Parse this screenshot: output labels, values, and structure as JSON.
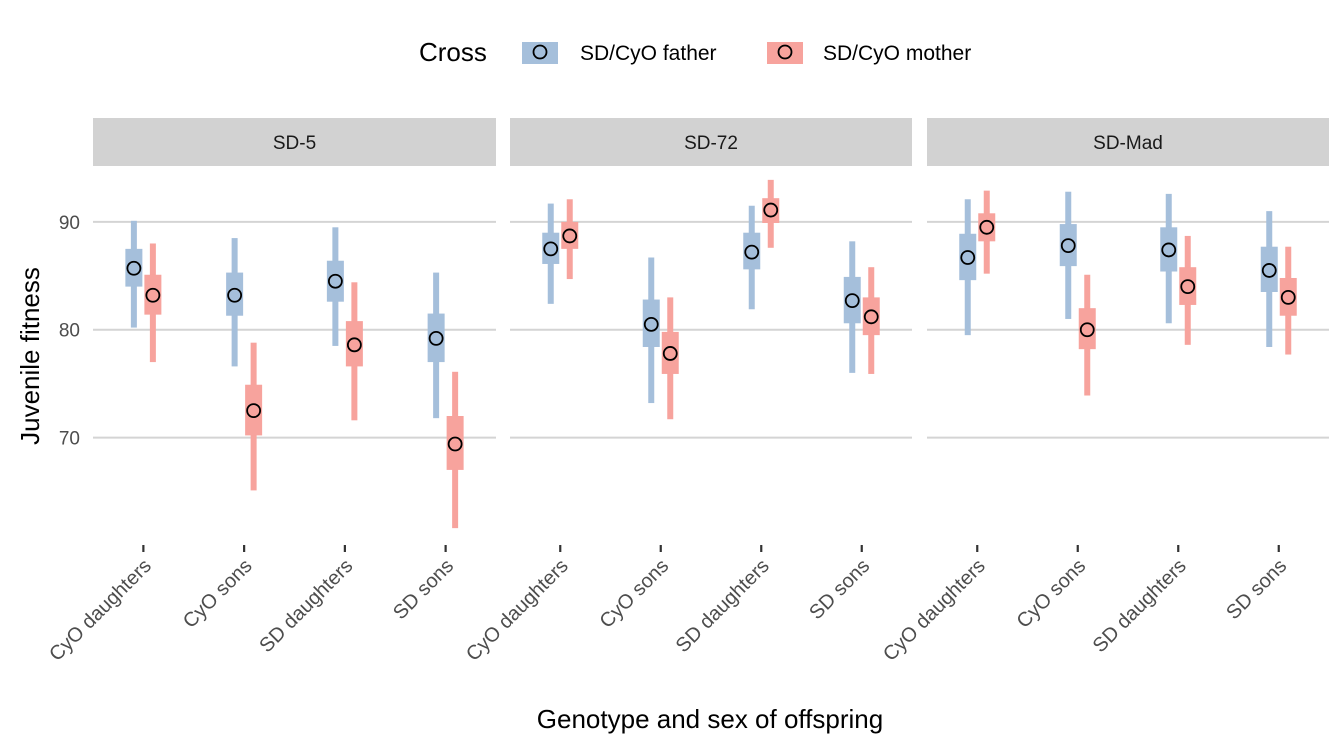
{
  "chart_data": {
    "type": "interval",
    "legend": {
      "title": "Cross",
      "position": "top",
      "entries": [
        {
          "label": "SD/CyO father",
          "color": "#a5bfdb"
        },
        {
          "label": "SD/CyO mother",
          "color": "#f7a39d"
        }
      ]
    },
    "xlabel": "Genotype and sex of offspring",
    "ylabel": "Juvenile fitness",
    "ylim": [
      60.5,
      95
    ],
    "yticks": [
      70,
      80,
      90
    ],
    "categories": [
      "CyO daughters",
      "CyO sons",
      "SD daughters",
      "SD sons"
    ],
    "series_names": [
      "SD/CyO father",
      "SD/CyO mother"
    ],
    "colors": {
      "father": "#a5bfdb",
      "mother": "#f7a39d"
    },
    "grid": true,
    "panels": [
      {
        "title": "SD-5",
        "data": [
          {
            "father": {
              "mean": 85.7,
              "inner": [
                84.0,
                87.5
              ],
              "outer": [
                80.2,
                90.1
              ]
            },
            "mother": {
              "mean": 83.2,
              "inner": [
                81.4,
                85.1
              ],
              "outer": [
                77.0,
                88.0
              ]
            }
          },
          {
            "father": {
              "mean": 83.2,
              "inner": [
                81.3,
                85.3
              ],
              "outer": [
                76.6,
                88.5
              ]
            },
            "mother": {
              "mean": 72.5,
              "inner": [
                70.2,
                74.9
              ],
              "outer": [
                65.1,
                78.8
              ]
            }
          },
          {
            "father": {
              "mean": 84.5,
              "inner": [
                82.6,
                86.4
              ],
              "outer": [
                78.5,
                89.5
              ]
            },
            "mother": {
              "mean": 78.6,
              "inner": [
                76.6,
                80.8
              ],
              "outer": [
                71.6,
                84.4
              ]
            }
          },
          {
            "father": {
              "mean": 79.2,
              "inner": [
                77.0,
                81.5
              ],
              "outer": [
                71.8,
                85.3
              ]
            },
            "mother": {
              "mean": 69.4,
              "inner": [
                67.0,
                72.0
              ],
              "outer": [
                61.6,
                76.1
              ]
            }
          }
        ]
      },
      {
        "title": "SD-72",
        "data": [
          {
            "father": {
              "mean": 87.5,
              "inner": [
                86.1,
                89.0
              ],
              "outer": [
                82.4,
                91.7
              ]
            },
            "mother": {
              "mean": 88.7,
              "inner": [
                87.5,
                90.0
              ],
              "outer": [
                84.7,
                92.1
              ]
            }
          },
          {
            "father": {
              "mean": 80.5,
              "inner": [
                78.4,
                82.8
              ],
              "outer": [
                73.2,
                86.7
              ]
            },
            "mother": {
              "mean": 77.8,
              "inner": [
                75.9,
                79.8
              ],
              "outer": [
                71.7,
                83.0
              ]
            }
          },
          {
            "father": {
              "mean": 87.2,
              "inner": [
                85.6,
                89.0
              ],
              "outer": [
                81.9,
                91.5
              ]
            },
            "mother": {
              "mean": 91.1,
              "inner": [
                89.9,
                92.2
              ],
              "outer": [
                87.6,
                93.9
              ]
            }
          },
          {
            "father": {
              "mean": 82.7,
              "inner": [
                80.6,
                84.9
              ],
              "outer": [
                76.0,
                88.2
              ]
            },
            "mother": {
              "mean": 81.2,
              "inner": [
                79.5,
                83.0
              ],
              "outer": [
                75.9,
                85.8
              ]
            }
          }
        ]
      },
      {
        "title": "SD-Mad",
        "data": [
          {
            "father": {
              "mean": 86.7,
              "inner": [
                84.6,
                88.9
              ],
              "outer": [
                79.5,
                92.1
              ]
            },
            "mother": {
              "mean": 89.5,
              "inner": [
                88.2,
                90.8
              ],
              "outer": [
                85.2,
                92.9
              ]
            }
          },
          {
            "father": {
              "mean": 87.8,
              "inner": [
                85.9,
                89.8
              ],
              "outer": [
                81.0,
                92.8
              ]
            },
            "mother": {
              "mean": 80.0,
              "inner": [
                78.2,
                82.0
              ],
              "outer": [
                73.9,
                85.1
              ]
            }
          },
          {
            "father": {
              "mean": 87.4,
              "inner": [
                85.4,
                89.5
              ],
              "outer": [
                80.6,
                92.6
              ]
            },
            "mother": {
              "mean": 84.0,
              "inner": [
                82.3,
                85.8
              ],
              "outer": [
                78.6,
                88.7
              ]
            }
          },
          {
            "father": {
              "mean": 85.5,
              "inner": [
                83.5,
                87.7
              ],
              "outer": [
                78.4,
                91.0
              ]
            },
            "mother": {
              "mean": 83.0,
              "inner": [
                81.3,
                84.8
              ],
              "outer": [
                77.7,
                87.7
              ]
            }
          }
        ]
      }
    ]
  }
}
